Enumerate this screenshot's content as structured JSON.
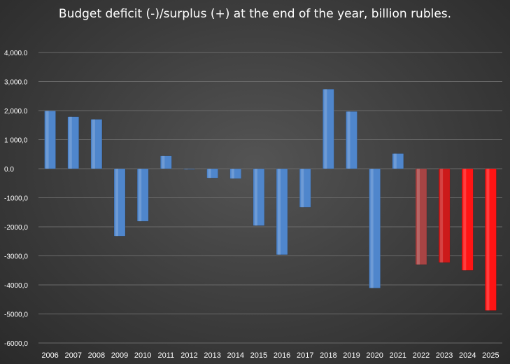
{
  "chart_data": {
    "type": "bar",
    "title": "Budget deficit (-)/surplus (+) at the end of the year, billion rubles.",
    "xlabel": "",
    "ylabel": "",
    "ylim": [
      -6000,
      4000
    ],
    "grid": true,
    "legend": "none",
    "y_tick_values": [
      4000,
      3000,
      2000,
      1000,
      0,
      -1000,
      -2000,
      -3000,
      -4000,
      -5000,
      -6000
    ],
    "y_tick_labels": [
      "4,000.0",
      "3,000.0",
      "2,000.0",
      "1 000,0",
      "0.0",
      "-1000,0",
      "-2000,0",
      "-3000,0",
      "-4000,0",
      "-5000,0",
      "-6000,0"
    ],
    "categories": [
      "2006",
      "2007",
      "2008",
      "2009",
      "2010",
      "2011",
      "2012",
      "2013",
      "2014",
      "2015",
      "2016",
      "2017",
      "2018",
      "2019",
      "2020",
      "2021",
      "2022",
      "2023",
      "2024",
      "2025"
    ],
    "values": [
      1990,
      1790,
      1700,
      -2320,
      -1810,
      440,
      -20,
      -320,
      -340,
      -1960,
      -2960,
      -1330,
      2740,
      1970,
      -4110,
      520,
      -3300,
      -3230,
      -3500,
      -4880
    ],
    "colors": {
      "blue": "#4f86cc",
      "dark_red": "#a84444",
      "red_2023": "#cc1a1a",
      "red": "#ff1414"
    },
    "bar_color_keys": [
      "blue",
      "blue",
      "blue",
      "blue",
      "blue",
      "blue",
      "blue",
      "blue",
      "blue",
      "blue",
      "blue",
      "blue",
      "blue",
      "blue",
      "blue",
      "blue",
      "dark_red",
      "red_2023",
      "red",
      "red"
    ]
  }
}
